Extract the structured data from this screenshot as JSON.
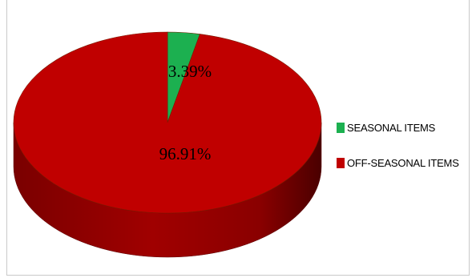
{
  "chart_data": {
    "type": "pie",
    "style": "3d",
    "slices": [
      {
        "name": "SEASONAL ITEMS",
        "value": 3.39,
        "label": "3.39%",
        "color": "#1cb050"
      },
      {
        "name": "OFF-SEASONAL ITEMS",
        "value": 96.91,
        "label": "96.91%",
        "color": "#c00000"
      }
    ],
    "legend": {
      "position": "right",
      "items": [
        "SEASONAL ITEMS",
        "OFF-SEASONAL ITEMS"
      ]
    }
  }
}
